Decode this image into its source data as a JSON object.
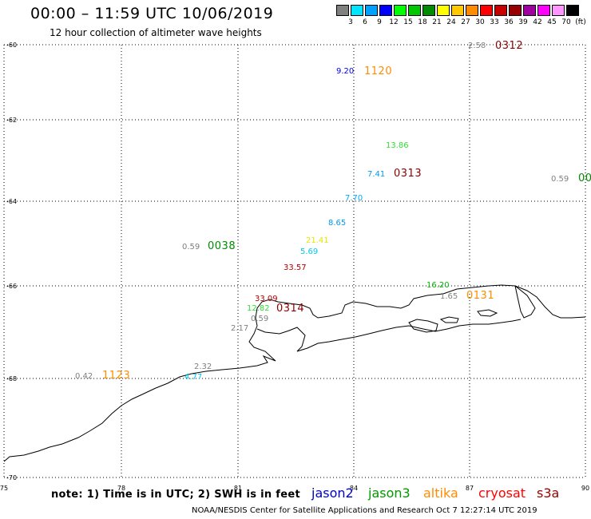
{
  "header": {
    "title": "00:00 – 11:59 UTC 10/06/2019",
    "subtitle": "12 hour collection of altimeter wave heights"
  },
  "color_scale": {
    "swatches": [
      "#808080",
      "#00e5ff",
      "#00a0ff",
      "#0000ff",
      "#00ff00",
      "#00c800",
      "#008c00",
      "#ffff00",
      "#ffc800",
      "#ff8c00",
      "#ff0000",
      "#c80000",
      "#960000",
      "#a000a0",
      "#ff00ff",
      "#ff96ff",
      "#000000"
    ],
    "ticks": [
      "3",
      "6",
      "9",
      "12",
      "15",
      "18",
      "21",
      "24",
      "27",
      "30",
      "33",
      "36",
      "39",
      "42",
      "45",
      "70",
      "(ft)"
    ]
  },
  "axes": {
    "lat_labels": [
      "-60",
      "-62",
      "-64",
      "-66",
      "-68",
      "-70"
    ],
    "lon_labels": [
      "75",
      "78",
      "81",
      "84",
      "87",
      "90"
    ]
  },
  "observations": [
    {
      "text": "2.58",
      "color": "#808080",
      "kind": "obs"
    },
    {
      "text": "0312",
      "color": "#8b0000",
      "kind": "pass"
    },
    {
      "text": "9.20",
      "color": "#0000ff",
      "kind": "obs"
    },
    {
      "text": "1120",
      "color": "#ff8c00",
      "kind": "pass"
    },
    {
      "text": "13.86",
      "color": "#33dd33",
      "kind": "obs"
    },
    {
      "text": "7.41",
      "color": "#0099ee",
      "kind": "obs"
    },
    {
      "text": "0313",
      "color": "#8b0000",
      "kind": "pass"
    },
    {
      "text": "0.59",
      "color": "#808080",
      "kind": "obs"
    },
    {
      "text": "00",
      "color": "#008c00",
      "kind": "pass"
    },
    {
      "text": "7.70",
      "color": "#00aaff",
      "kind": "obs"
    },
    {
      "text": "8.65",
      "color": "#0099ee",
      "kind": "obs"
    },
    {
      "text": "0.59",
      "color": "#808080",
      "kind": "obs"
    },
    {
      "text": "0038",
      "color": "#008c00",
      "kind": "pass"
    },
    {
      "text": "21.41",
      "color": "#e6e600",
      "kind": "obs"
    },
    {
      "text": "5.69",
      "color": "#00c8ee",
      "kind": "obs"
    },
    {
      "text": "33.57",
      "color": "#b40000",
      "kind": "obs"
    },
    {
      "text": "16.20",
      "color": "#00b400",
      "kind": "obs"
    },
    {
      "text": "1.65",
      "color": "#808080",
      "kind": "obs"
    },
    {
      "text": "0131",
      "color": "#ff8c00",
      "kind": "pass"
    },
    {
      "text": "33.09",
      "color": "#b40000",
      "kind": "obs"
    },
    {
      "text": "12.82",
      "color": "#33dd33",
      "kind": "obs"
    },
    {
      "text": "0314",
      "color": "#8b0000",
      "kind": "pass"
    },
    {
      "text": "0.59",
      "color": "#808080",
      "kind": "obs"
    },
    {
      "text": "2.17",
      "color": "#808080",
      "kind": "obs"
    },
    {
      "text": "2.32",
      "color": "#808080",
      "kind": "obs"
    },
    {
      "text": "4.77",
      "color": "#00c8ee",
      "kind": "obs"
    },
    {
      "text": "0.42",
      "color": "#808080",
      "kind": "obs"
    },
    {
      "text": "1123",
      "color": "#ff8c00",
      "kind": "pass"
    }
  ],
  "footer": {
    "note": "note: 1) Time is in UTC; 2) SWH is in feet",
    "satellites": [
      {
        "name": "jason2",
        "color": "#0000cc"
      },
      {
        "name": "jason3",
        "color": "#009900"
      },
      {
        "name": "altika",
        "color": "#ff8c00"
      },
      {
        "name": "cryosat",
        "color": "#ff0000"
      },
      {
        "name": "s3a",
        "color": "#990000"
      }
    ],
    "credit": "NOAA/NESDIS Center for Satellite Applications and Research    Oct  7 12:27:14 UTC 2019"
  }
}
